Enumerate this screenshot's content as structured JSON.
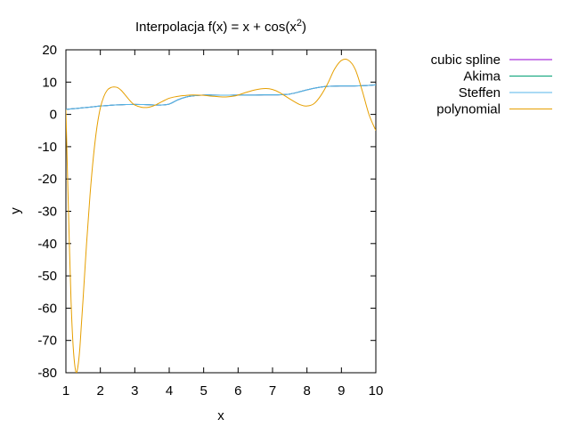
{
  "chart_data": {
    "type": "line",
    "title_main": "Interpolacja f(x) = x + cos(x",
    "title_sup": "2",
    "title_end": ")",
    "xlabel": "x",
    "ylabel": "y",
    "xlim": [
      1,
      10
    ],
    "ylim": [
      -80,
      20
    ],
    "xticks": [
      "1",
      "2",
      "3",
      "4",
      "5",
      "6",
      "7",
      "8",
      "9",
      "10"
    ],
    "yticks": [
      "20",
      "10",
      "0",
      "-10",
      "-20",
      "-30",
      "-40",
      "-50",
      "-60",
      "-70",
      "-80"
    ],
    "grid": false,
    "legend_position": "outside-top-right",
    "series": [
      {
        "name": "cubic spline",
        "color": "#9400d3",
        "x": [
          1,
          1.25,
          1.5,
          1.75,
          2,
          2.25,
          2.5,
          2.75,
          3,
          3.25,
          3.5,
          3.75,
          4,
          4.25,
          4.5,
          4.75,
          5,
          5.25,
          5.5,
          5.75,
          6,
          6.25,
          6.5,
          6.75,
          7,
          7.25,
          7.5,
          7.75,
          8,
          8.25,
          8.5,
          8.75,
          9,
          9.25,
          9.5,
          9.75,
          10
        ],
        "y": [
          1.54,
          1.8,
          2.05,
          2.3,
          2.6,
          2.8,
          2.95,
          3.05,
          3.1,
          3.05,
          2.95,
          2.9,
          3.2,
          4.5,
          5.4,
          5.8,
          6.0,
          6.0,
          5.95,
          5.95,
          6.0,
          6.0,
          6.0,
          6.05,
          6.05,
          6.1,
          6.3,
          6.9,
          7.6,
          8.2,
          8.6,
          8.75,
          8.8,
          8.8,
          8.85,
          8.95,
          9.15
        ]
      },
      {
        "name": "Akima",
        "color": "#009e73",
        "x": [
          1,
          1.25,
          1.5,
          1.75,
          2,
          2.25,
          2.5,
          2.75,
          3,
          3.25,
          3.5,
          3.75,
          4,
          4.25,
          4.5,
          4.75,
          5,
          5.25,
          5.5,
          5.75,
          6,
          6.25,
          6.5,
          6.75,
          7,
          7.25,
          7.5,
          7.75,
          8,
          8.25,
          8.5,
          8.75,
          9,
          9.25,
          9.5,
          9.75,
          10
        ],
        "y": [
          1.54,
          1.8,
          2.05,
          2.3,
          2.6,
          2.8,
          2.95,
          3.05,
          3.1,
          3.05,
          2.95,
          2.9,
          3.2,
          4.5,
          5.4,
          5.8,
          6.0,
          6.0,
          5.95,
          5.95,
          6.0,
          6.0,
          6.0,
          6.05,
          6.05,
          6.1,
          6.3,
          6.9,
          7.6,
          8.2,
          8.6,
          8.75,
          8.8,
          8.8,
          8.85,
          8.95,
          9.15
        ]
      },
      {
        "name": "Steffen",
        "color": "#56b4e9",
        "x": [
          1,
          1.25,
          1.5,
          1.75,
          2,
          2.25,
          2.5,
          2.75,
          3,
          3.25,
          3.5,
          3.75,
          4,
          4.25,
          4.5,
          4.75,
          5,
          5.25,
          5.5,
          5.75,
          6,
          6.25,
          6.5,
          6.75,
          7,
          7.25,
          7.5,
          7.75,
          8,
          8.25,
          8.5,
          8.75,
          9,
          9.25,
          9.5,
          9.75,
          10
        ],
        "y": [
          1.54,
          1.8,
          2.05,
          2.3,
          2.6,
          2.8,
          2.95,
          3.05,
          3.1,
          3.05,
          2.95,
          2.9,
          3.2,
          4.5,
          5.4,
          5.8,
          6.0,
          6.0,
          5.95,
          5.95,
          6.0,
          6.0,
          6.0,
          6.05,
          6.05,
          6.1,
          6.3,
          6.9,
          7.6,
          8.2,
          8.6,
          8.75,
          8.8,
          8.8,
          8.85,
          8.95,
          9.15
        ]
      },
      {
        "name": "polynomial",
        "color": "#e69f00",
        "x": [
          1,
          1.05,
          1.1,
          1.15,
          1.2,
          1.25,
          1.3,
          1.35,
          1.4,
          1.45,
          1.5,
          1.6,
          1.7,
          1.8,
          1.9,
          2,
          2.1,
          2.2,
          2.3,
          2.4,
          2.5,
          2.6,
          2.7,
          2.8,
          2.9,
          3,
          3.2,
          3.4,
          3.6,
          3.8,
          4,
          4.2,
          4.4,
          4.6,
          4.8,
          5,
          5.3,
          5.6,
          5.9,
          6.2,
          6.5,
          6.8,
          7,
          7.2,
          7.5,
          7.8,
          8,
          8.2,
          8.4,
          8.6,
          8.8,
          9,
          9.2,
          9.4,
          9.6,
          9.8,
          10
        ],
        "y": [
          1.54,
          -20,
          -40,
          -58,
          -70,
          -77,
          -80,
          -78,
          -73,
          -65,
          -57,
          -40,
          -25,
          -13,
          -4,
          2,
          5.5,
          7.5,
          8.3,
          8.5,
          8.3,
          7.5,
          6.3,
          5,
          3.8,
          2.9,
          2.2,
          2.2,
          2.9,
          4,
          5,
          5.5,
          5.8,
          6.0,
          6.0,
          5.9,
          5.6,
          5.4,
          5.7,
          6.7,
          7.6,
          8.0,
          7.7,
          6.8,
          4.8,
          3.0,
          2.6,
          3.3,
          5.8,
          9.5,
          14,
          16.7,
          16.8,
          14,
          7.5,
          0,
          -5
        ]
      }
    ]
  }
}
